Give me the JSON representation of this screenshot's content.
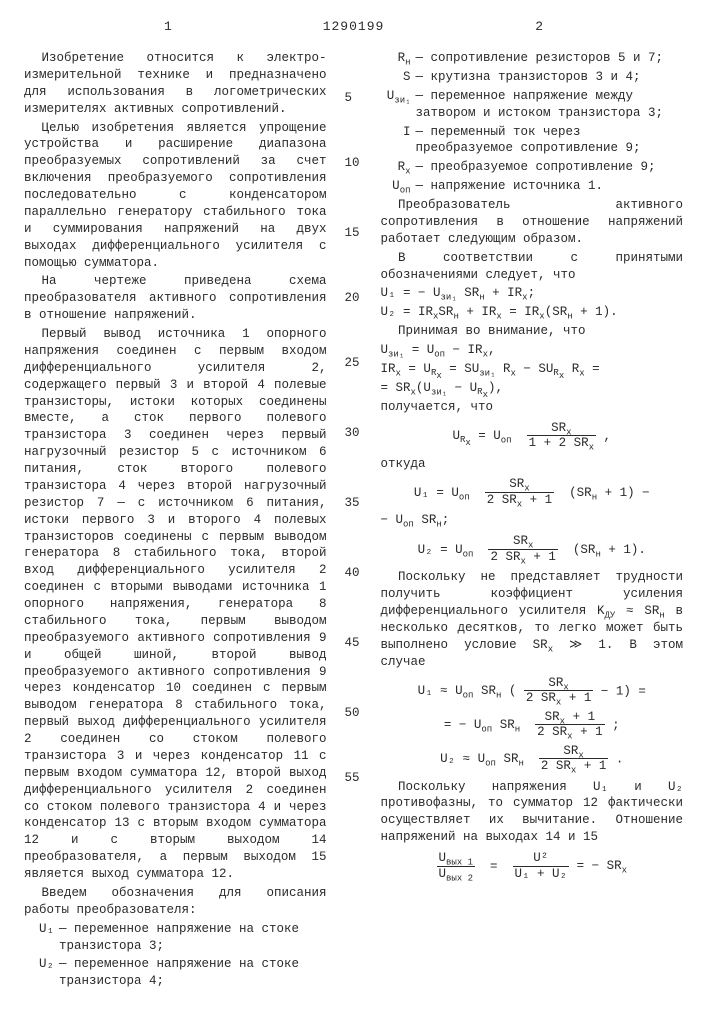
{
  "patent_number": "1290199",
  "page_left": "1",
  "page_right": "2",
  "line_marks": [
    "5",
    "10",
    "15",
    "20",
    "25",
    "30",
    "35",
    "40",
    "45",
    "50",
    "55"
  ],
  "col1": {
    "p1": "Изобретение относится к электро-измерительной технике и предназначено для использования в логометрических измерителях активных сопротивлений.",
    "p2": "Целью изобретения является упрощение устройства и расширение диапазона преобразуемых сопротивлений за счет включения преобразуемого сопротивления последовательно с конденсатором параллельно генератору стабильного тока и суммирования напряжений на двух выходах дифференциального усилителя с помощью сумматора.",
    "p3": "На чертеже приведена схема преобразователя активного сопротивления в отношение напряжений.",
    "p4": "Первый вывод источника 1 опорного напряжения соединен с первым входом дифференциального усилителя 2, содержащего первый 3 и второй 4 полевые транзисторы, истоки которых соединены вместе, а сток первого полевого транзистора 3 соединен через первый нагрузочный резистор 5 с источником 6 питания, сток второго полевого транзистора 4 через второй нагрузочный резистор 7 — с источником 6 питания, истоки первого 3 и второго 4 полевых транзисторов соединены с первым выводом генератора 8 стабильного тока, второй вход дифференциального усилителя 2 соединен с вторыми выводами источника 1 опорного напряжения, генератора 8 стабильного тока, первым выводом преобразуемого активного сопротивления 9 и общей шиной, второй вывод преобразуемого активного сопротивления 9 через конденсатор 10 соединен с первым выводом генератора 8 стабильного тока, первый выход дифференциального усилителя 2 соединен со стоком полевого транзистора 3 и через конденсатор 11 с первым входом сумматора 12, второй выход дифференциального усилителя 2 соединен со стоком полевого транзистора 4 и через конденсатор 13 с вторым входом сумматора 12 и с вторым выходом 14 преобразователя, а первым выходом 15 является выход сумматора 12.",
    "p5": "Введем обозначения для описания работы преобразователя:",
    "defs": [
      {
        "sym": "U₁",
        "text": "— переменное напряжение на стоке транзистора 3;"
      },
      {
        "sym": "U₂",
        "text": "— переменное напряжение на стоке транзистора 4;"
      }
    ]
  },
  "col2": {
    "defs": [
      {
        "sym": "R<sub>н</sub>",
        "text": "— сопротивление резисторов 5 и 7;"
      },
      {
        "sym": "S",
        "text": "— крутизна транзисторов 3 и 4;"
      },
      {
        "sym": "U<sub>зи₁</sub>",
        "text": "— переменное напряжение между затвором и истоком транзистора 3;"
      },
      {
        "sym": "I",
        "text": "— переменный ток через преобразуемое сопротивление 9;"
      },
      {
        "sym": "R<sub>x</sub>",
        "text": "— преобразуемое сопротивление 9;"
      },
      {
        "sym": "U<sub>оп</sub>",
        "text": "— напряжение источника 1."
      }
    ],
    "p1": "Преобразователь активного сопротивления в отношение напряжений работает следующим образом.",
    "p2": "В соответствии с принятыми обозначениями следует, что",
    "eq1a": "U₁ = − U<sub>зи₁</sub> SR<sub>н</sub> + IR<sub>x</sub>;",
    "eq1b": "U₂ = IR<sub>x</sub>SR<sub>н</sub> + IR<sub>x</sub> = IR<sub>x</sub>(SR<sub>н</sub> + 1).",
    "p3": "Принимая во внимание, что",
    "eq2a": "U<sub>зи₁</sub> = U<sub>оп</sub> − IR<sub>x</sub>,",
    "eq2b": "IR<sub>x</sub> = U<sub>R<sub>x</sub></sub> = SU<sub>зи₁</sub> R<sub>x</sub> − SU<sub>R<sub>x</sub></sub> R<sub>x</sub> =",
    "eq2c": "= SR<sub>x</sub>(U<sub>зи₁</sub> − U<sub>R<sub>x</sub></sub>),",
    "p4": "получается, что",
    "p5": "откуда",
    "p6": "Поскольку не представляет трудности получить коэффициент усиления дифференциального усилителя K<sub>ДУ</sub> ≈ SR<sub>н</sub> в несколько десятков, то легко может быть выполнено условие SR<sub>x</sub> ≫ 1. В этом случае",
    "p7": "Поскольку напряжения U₁ и U₂ противофазны, то сумматор 12 фактически осуществляет их вычитание. Отношение напряжений на выходах 14 и 15",
    "eqURx_label": "U<sub>R<sub>x</sub></sub> = U<sub>оп</sub>",
    "eqURx_num": "SR<sub>x</sub>",
    "eqURx_den": "1 + 2 SR<sub>x</sub>",
    "eqU1_pre": "U₁ = U<sub>оп</sub>",
    "eqU1_num": "SR<sub>x</sub>",
    "eqU1_den": "2 SR<sub>x</sub> + 1",
    "eqU1_post": "(SR<sub>н</sub> + 1) −",
    "eqU1_line2": "− U<sub>оп</sub> SR<sub>н</sub>;",
    "eqU2_pre": "U₂ = U<sub>оп</sub>",
    "eqU2_num": "SR<sub>x</sub>",
    "eqU2_den": "2 SR<sub>x</sub> + 1",
    "eqU2_post": "(SR<sub>н</sub> + 1).",
    "eqU1a_pre": "U₁ ≈ U<sub>оп</sub> SR<sub>н</sub> (",
    "eqU1a_num": "SR<sub>x</sub>",
    "eqU1a_den": "2 SR<sub>x</sub> + 1",
    "eqU1a_post": " − 1) =",
    "eqU1a2_pre": "= − U<sub>оп</sub> SR<sub>н</sub>",
    "eqU1a2_num": "SR<sub>x</sub> + 1",
    "eqU1a2_den": "2 SR<sub>x</sub> + 1",
    "eqU2a_pre": "U₂ ≈ U<sub>оп</sub> SR<sub>н</sub>",
    "eqU2a_num": "SR<sub>x</sub>",
    "eqU2a_den": "2 SR<sub>x</sub> + 1",
    "eqRatio_left_num": "U<sub>вых 1</sub>",
    "eqRatio_left_den": "U<sub>вых 2</sub>",
    "eqRatio_mid_num": "U²",
    "eqRatio_mid_den": "U₁ + U₂",
    "eqRatio_right": " = − SR<sub>x</sub>"
  }
}
